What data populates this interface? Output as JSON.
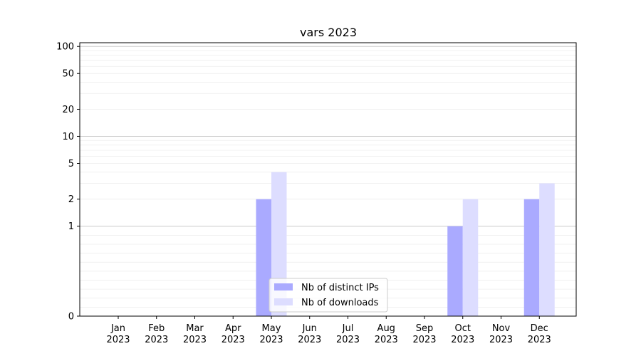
{
  "chart_data": {
    "type": "bar",
    "title": "vars 2023",
    "xlabel": "",
    "ylabel": "",
    "y_scale": "symlog",
    "ylim": [
      0,
      110
    ],
    "y_ticks": [
      0,
      1,
      2,
      5,
      10,
      20,
      50,
      100
    ],
    "grid": true,
    "legend_position": "lower-center",
    "categories": [
      {
        "month": "Jan",
        "year": "2023"
      },
      {
        "month": "Feb",
        "year": "2023"
      },
      {
        "month": "Mar",
        "year": "2023"
      },
      {
        "month": "Apr",
        "year": "2023"
      },
      {
        "month": "May",
        "year": "2023"
      },
      {
        "month": "Jun",
        "year": "2023"
      },
      {
        "month": "Jul",
        "year": "2023"
      },
      {
        "month": "Aug",
        "year": "2023"
      },
      {
        "month": "Sep",
        "year": "2023"
      },
      {
        "month": "Oct",
        "year": "2023"
      },
      {
        "month": "Nov",
        "year": "2023"
      },
      {
        "month": "Dec",
        "year": "2023"
      }
    ],
    "series": [
      {
        "name": "Nb of distinct IPs",
        "color": "#aaaaff",
        "values": [
          0,
          0,
          0,
          0,
          2,
          0,
          0,
          0,
          0,
          1,
          0,
          2
        ]
      },
      {
        "name": "Nb of downloads",
        "color": "#ddddff",
        "values": [
          0,
          0,
          0,
          0,
          4,
          0,
          0,
          0,
          0,
          2,
          0,
          3
        ]
      }
    ]
  }
}
